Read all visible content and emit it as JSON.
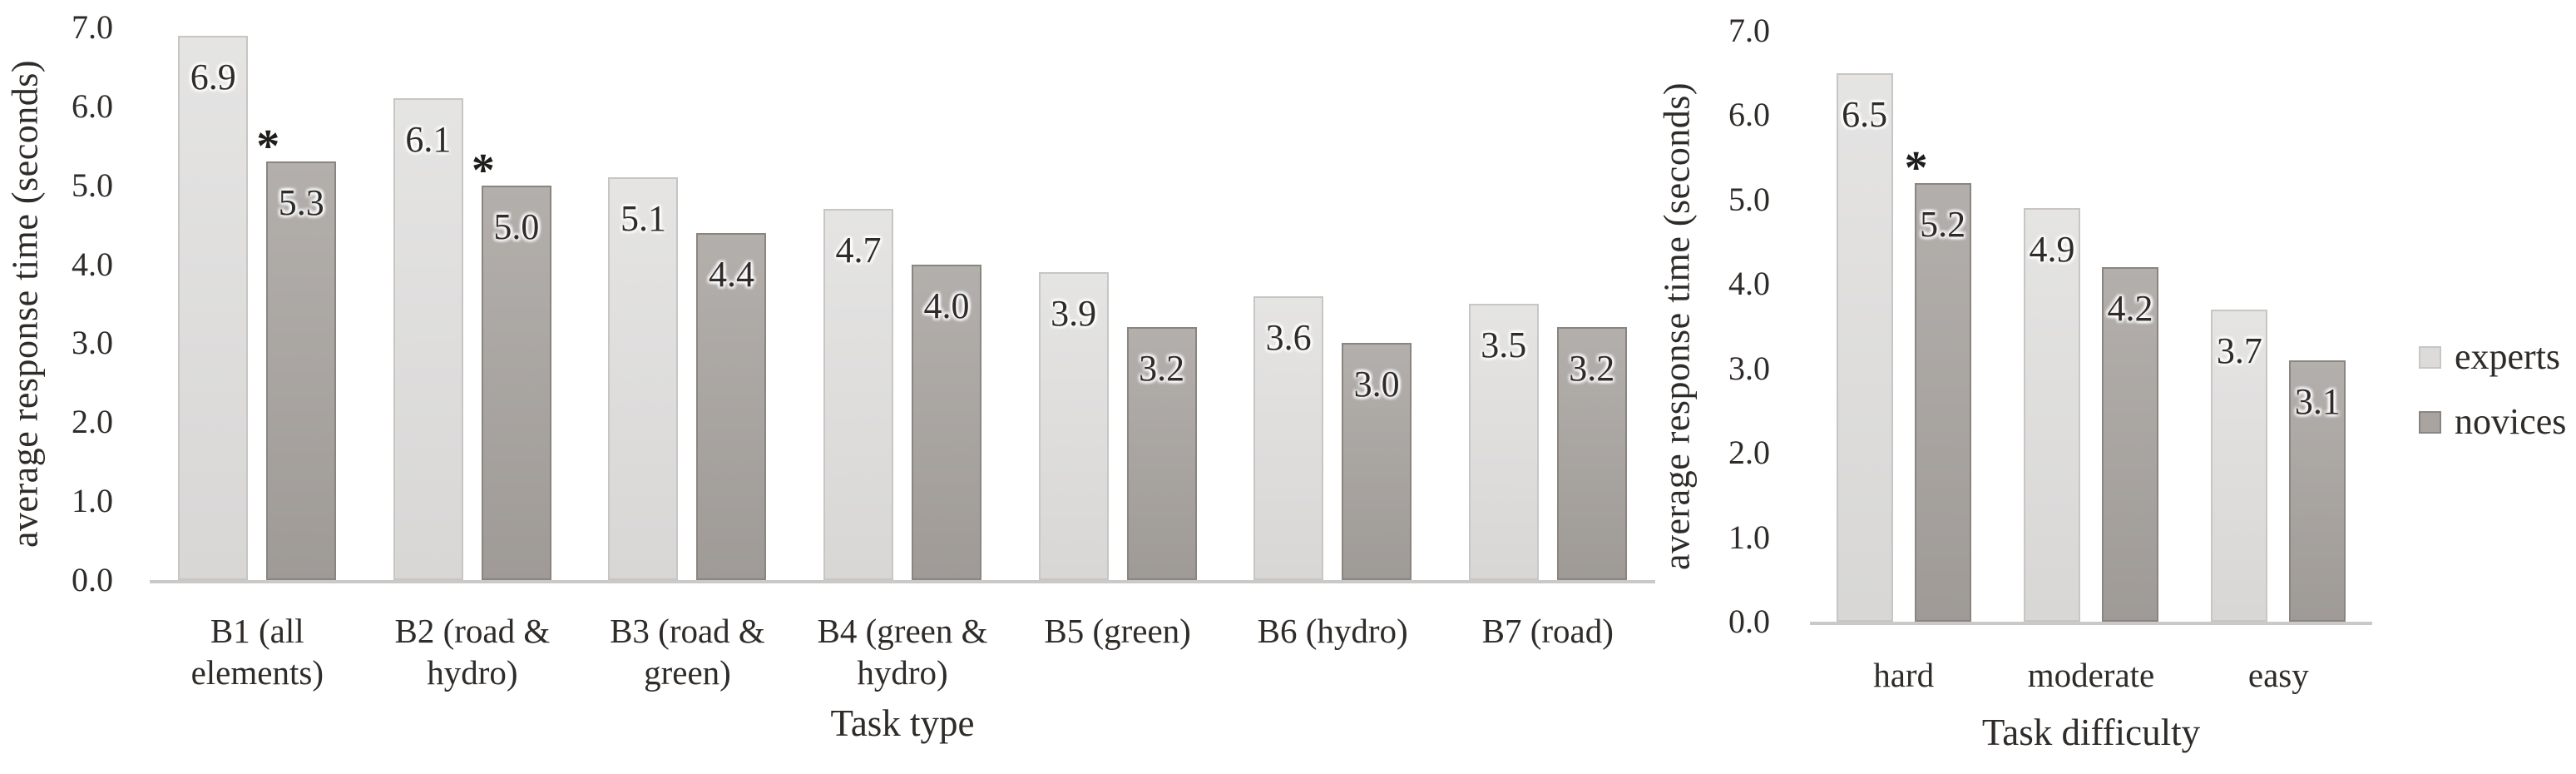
{
  "figure": {
    "background": "#ffffff",
    "text_color": "#2e2b29",
    "axis_line_color": "#cbc9c8",
    "marker_symbol": "*"
  },
  "series_styles": {
    "experts": {
      "fill": "#dcdbda",
      "border": "#c8c6c5"
    },
    "novices": {
      "fill": "#a9a4a0",
      "border": "#8a8580"
    }
  },
  "legend": {
    "position": "right",
    "items": [
      {
        "label": "experts",
        "series": "experts"
      },
      {
        "label": "novices",
        "series": "novices"
      }
    ]
  },
  "chart_data": [
    {
      "type": "bar",
      "title": "",
      "xlabel": "Task type",
      "ylabel": "average response time (seconds)",
      "ylim": [
        0.0,
        7.0
      ],
      "ytick_step": 1.0,
      "yticks": [
        7.0,
        6.0,
        5.0,
        4.0,
        3.0,
        2.0,
        1.0,
        0.0
      ],
      "grid": false,
      "value_label_decimals": 1,
      "categories": [
        "B1 (all\nelements)",
        "B2 (road &\nhydro)",
        "B3 (road &\ngreen)",
        "B4 (green &\nhydro)",
        "B5 (green)",
        "B6 (hydro)",
        "B7 (road)"
      ],
      "series": [
        {
          "name": "experts",
          "values": [
            6.9,
            6.1,
            5.1,
            4.7,
            3.9,
            3.6,
            3.5
          ]
        },
        {
          "name": "novices",
          "values": [
            5.3,
            5.0,
            4.4,
            4.0,
            3.2,
            3.0,
            3.2
          ],
          "significant": [
            true,
            true,
            false,
            false,
            false,
            false,
            false
          ]
        }
      ]
    },
    {
      "type": "bar",
      "title": "",
      "xlabel": "Task difficulty",
      "ylabel": "average response time (seconds)",
      "ylim": [
        0.0,
        7.0
      ],
      "ytick_step": 1.0,
      "yticks": [
        7.0,
        6.0,
        5.0,
        4.0,
        3.0,
        2.0,
        1.0,
        0.0
      ],
      "grid": false,
      "value_label_decimals": 1,
      "categories": [
        "hard",
        "moderate",
        "easy"
      ],
      "series": [
        {
          "name": "experts",
          "values": [
            6.5,
            4.9,
            3.7
          ]
        },
        {
          "name": "novices",
          "values": [
            5.2,
            4.2,
            3.1
          ],
          "significant": [
            true,
            false,
            false
          ]
        }
      ]
    }
  ]
}
